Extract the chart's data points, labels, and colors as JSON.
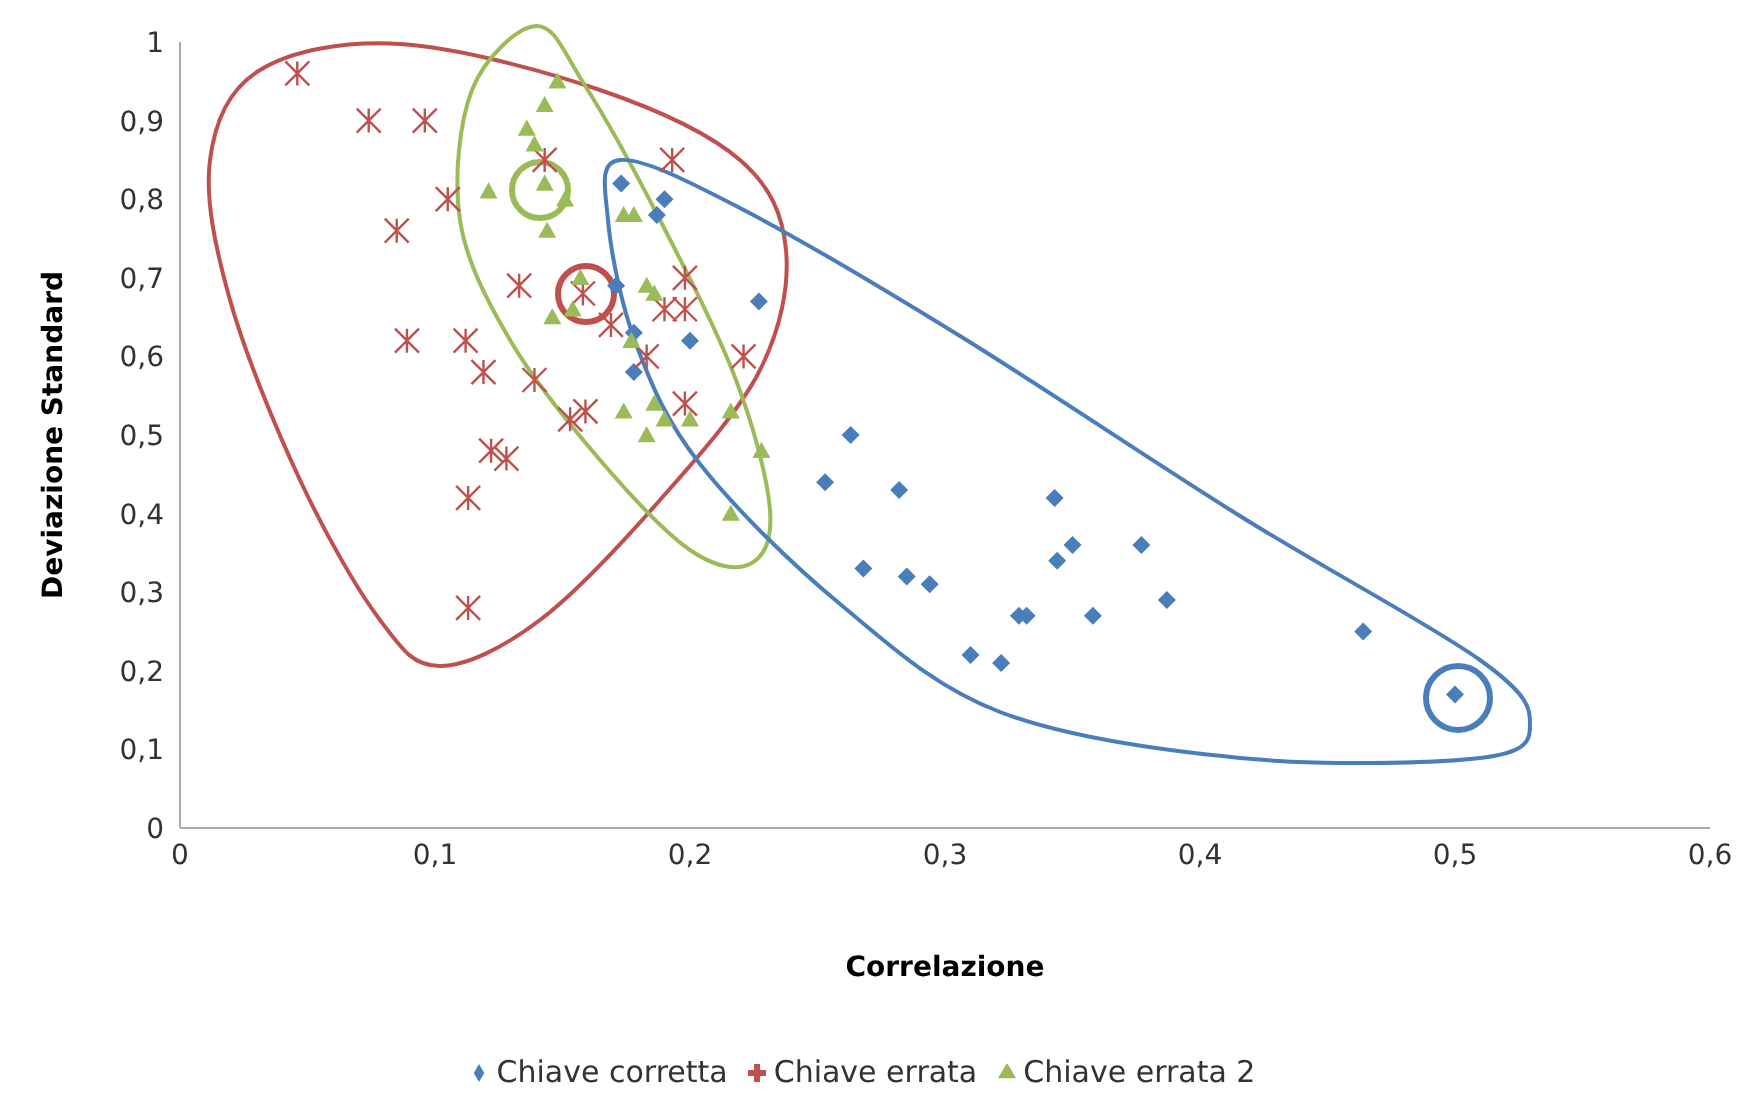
{
  "chart_data": {
    "type": "scatter",
    "xlabel": "Correlazione",
    "ylabel": "Deviazione Standard",
    "xlim": [
      0,
      0.6
    ],
    "ylim": [
      0,
      1
    ],
    "xticks": [
      0,
      {
        "value": 0.1,
        "label": "0,1"
      },
      {
        "value": 0.2,
        "label": "0,2"
      },
      {
        "value": 0.3,
        "label": "0,3"
      },
      {
        "value": 0.4,
        "label": "0,4"
      },
      {
        "value": 0.5,
        "label": "0,5"
      },
      {
        "value": 0.6,
        "label": "0,6"
      }
    ],
    "yticks": [
      0,
      {
        "value": 0.1,
        "label": "0,1"
      },
      {
        "value": 0.2,
        "label": "0,2"
      },
      {
        "value": 0.3,
        "label": "0,3"
      },
      {
        "value": 0.4,
        "label": "0,4"
      },
      {
        "value": 0.5,
        "label": "0,5"
      },
      {
        "value": 0.6,
        "label": "0,6"
      },
      {
        "value": 0.7,
        "label": "0,7"
      },
      {
        "value": 0.8,
        "label": "0,8"
      },
      {
        "value": 0.9,
        "label": "0,9"
      },
      1
    ],
    "grid": false,
    "legend": "bottom",
    "series": [
      {
        "name": "Chiave corretta",
        "color": "#4a7ebb",
        "marker": "diamond",
        "x": [
          0.173,
          0.19,
          0.187,
          0.171,
          0.227,
          0.178,
          0.2,
          0.178,
          0.263,
          0.253,
          0.282,
          0.343,
          0.268,
          0.285,
          0.294,
          0.344,
          0.35,
          0.377,
          0.387,
          0.329,
          0.332,
          0.358,
          0.31,
          0.322,
          0.464,
          0.5
        ],
        "values": [
          0.82,
          0.8,
          0.78,
          0.69,
          0.67,
          0.63,
          0.62,
          0.58,
          0.5,
          0.44,
          0.43,
          0.42,
          0.33,
          0.32,
          0.31,
          0.34,
          0.36,
          0.36,
          0.29,
          0.27,
          0.27,
          0.27,
          0.22,
          0.21,
          0.25,
          0.17
        ]
      },
      {
        "name": "Chiave errata",
        "color": "#c0504d",
        "marker": "cross",
        "x": [
          0.046,
          0.074,
          0.096,
          0.193,
          0.143,
          0.105,
          0.085,
          0.133,
          0.158,
          0.198,
          0.19,
          0.198,
          0.169,
          0.183,
          0.221,
          0.089,
          0.112,
          0.119,
          0.139,
          0.159,
          0.153,
          0.198,
          0.122,
          0.128,
          0.113,
          0.113
        ],
        "values": [
          0.96,
          0.9,
          0.9,
          0.85,
          0.85,
          0.8,
          0.76,
          0.69,
          0.68,
          0.7,
          0.66,
          0.66,
          0.64,
          0.6,
          0.6,
          0.62,
          0.62,
          0.58,
          0.57,
          0.53,
          0.52,
          0.54,
          0.48,
          0.47,
          0.42,
          0.28
        ]
      },
      {
        "name": "Chiave errata 2",
        "color": "#9bbb59",
        "marker": "triangle",
        "x": [
          0.148,
          0.143,
          0.136,
          0.139,
          0.121,
          0.143,
          0.151,
          0.144,
          0.174,
          0.178,
          0.157,
          0.183,
          0.186,
          0.146,
          0.154,
          0.177,
          0.174,
          0.186,
          0.19,
          0.2,
          0.216,
          0.183,
          0.228,
          0.216
        ],
        "values": [
          0.95,
          0.92,
          0.89,
          0.87,
          0.81,
          0.82,
          0.8,
          0.76,
          0.78,
          0.78,
          0.7,
          0.69,
          0.68,
          0.65,
          0.66,
          0.62,
          0.53,
          0.54,
          0.52,
          0.52,
          0.53,
          0.5,
          0.48,
          0.4
        ]
      }
    ]
  }
}
